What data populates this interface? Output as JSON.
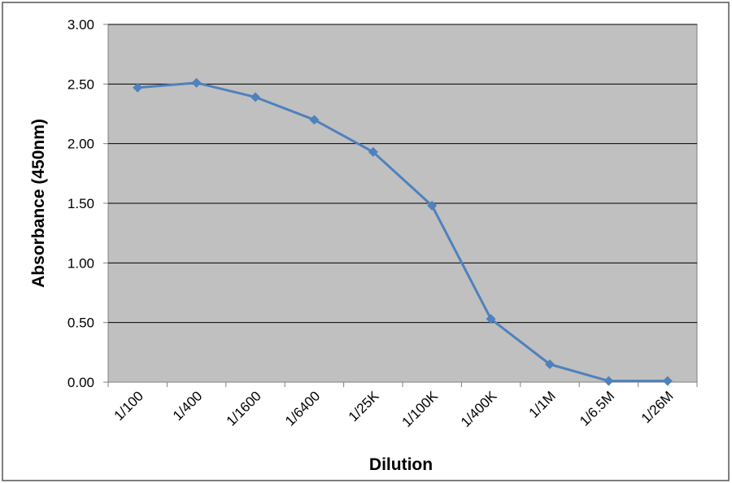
{
  "chart_data": {
    "type": "line",
    "x_label": "Dilution",
    "y_label": "Absorbance (450nm)",
    "categories": [
      "1/100",
      "1/400",
      "1/1600",
      "1/6400",
      "1/25K",
      "1/100K",
      "1/400K",
      "1/1M",
      "1/6.5M",
      "1/26M"
    ],
    "values": [
      2.47,
      2.51,
      2.39,
      2.2,
      1.93,
      1.48,
      0.53,
      0.15,
      0.01,
      0.01
    ],
    "color": "#4f81bd",
    "ylim": [
      0,
      3
    ],
    "yticks": [
      {
        "value": 0,
        "label": "0.00"
      },
      {
        "value": 0.5,
        "label": "0.50"
      },
      {
        "value": 1,
        "label": "1.00"
      },
      {
        "value": 1.5,
        "label": "1.50"
      },
      {
        "value": 2,
        "label": "2.00"
      },
      {
        "value": 2.5,
        "label": "2.50"
      },
      {
        "value": 3,
        "label": "3.00"
      }
    ],
    "grid": true
  }
}
